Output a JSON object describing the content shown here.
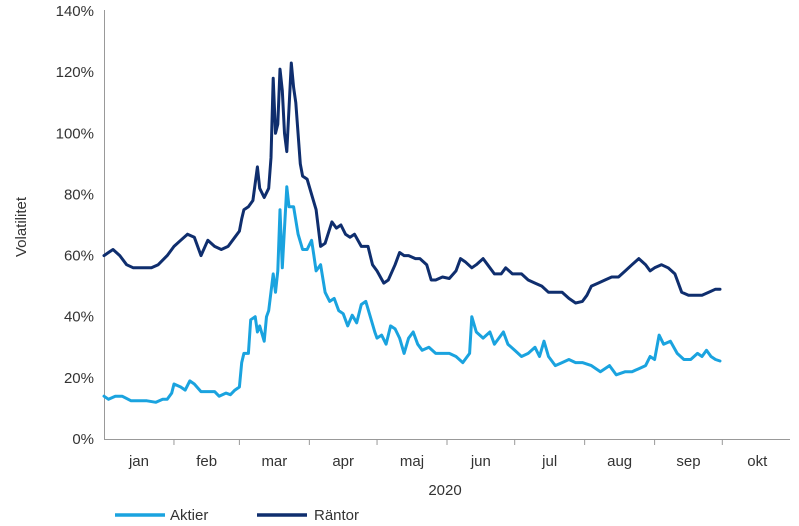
{
  "chart_data": {
    "type": "line",
    "xlabel": "2020",
    "ylabel": "Volatilitet",
    "ylim": [
      0,
      140
    ],
    "y_ticks": [
      "0%",
      "20%",
      "40%",
      "60%",
      "80%",
      "100%",
      "120%",
      "140%"
    ],
    "y_tick_values": [
      0,
      20,
      40,
      60,
      80,
      100,
      120,
      140
    ],
    "x_range": [
      "2020-01-01",
      "2020-10-31"
    ],
    "x_ticks": [
      "jan",
      "feb",
      "mar",
      "apr",
      "maj",
      "jun",
      "jul",
      "aug",
      "sep",
      "okt"
    ],
    "grid": false,
    "legend": "bottom-left",
    "series": [
      {
        "name": "Aktier",
        "color": "#1aa3df",
        "points": [
          [
            "2020-01-01",
            14
          ],
          [
            "2020-01-03",
            13
          ],
          [
            "2020-01-06",
            14
          ],
          [
            "2020-01-09",
            14
          ],
          [
            "2020-01-13",
            12.5
          ],
          [
            "2020-01-16",
            12.5
          ],
          [
            "2020-01-20",
            12.5
          ],
          [
            "2020-01-24",
            12
          ],
          [
            "2020-01-27",
            13
          ],
          [
            "2020-01-29",
            13
          ],
          [
            "2020-01-31",
            15
          ],
          [
            "2020-02-01",
            18
          ],
          [
            "2020-02-04",
            17
          ],
          [
            "2020-02-06",
            16
          ],
          [
            "2020-02-08",
            19
          ],
          [
            "2020-02-10",
            18
          ],
          [
            "2020-02-13",
            15.5
          ],
          [
            "2020-02-16",
            15.5
          ],
          [
            "2020-02-19",
            15.5
          ],
          [
            "2020-02-21",
            14
          ],
          [
            "2020-02-24",
            15
          ],
          [
            "2020-02-26",
            14.5
          ],
          [
            "2020-02-28",
            16
          ],
          [
            "2020-03-01",
            17
          ],
          [
            "2020-03-02",
            25
          ],
          [
            "2020-03-03",
            28
          ],
          [
            "2020-03-05",
            28
          ],
          [
            "2020-03-06",
            39
          ],
          [
            "2020-03-08",
            40
          ],
          [
            "2020-03-09",
            35
          ],
          [
            "2020-03-10",
            37
          ],
          [
            "2020-03-12",
            32
          ],
          [
            "2020-03-13",
            40
          ],
          [
            "2020-03-14",
            42
          ],
          [
            "2020-03-16",
            54
          ],
          [
            "2020-03-17",
            48
          ],
          [
            "2020-03-18",
            55
          ],
          [
            "2020-03-19",
            75
          ],
          [
            "2020-03-20",
            56
          ],
          [
            "2020-03-22",
            82.5
          ],
          [
            "2020-03-23",
            76
          ],
          [
            "2020-03-25",
            76
          ],
          [
            "2020-03-27",
            67
          ],
          [
            "2020-03-29",
            62
          ],
          [
            "2020-03-31",
            62
          ],
          [
            "2020-04-02",
            65
          ],
          [
            "2020-04-03",
            60
          ],
          [
            "2020-04-04",
            55
          ],
          [
            "2020-04-06",
            57
          ],
          [
            "2020-04-08",
            48
          ],
          [
            "2020-04-10",
            45
          ],
          [
            "2020-04-12",
            46
          ],
          [
            "2020-04-14",
            42
          ],
          [
            "2020-04-16",
            41
          ],
          [
            "2020-04-18",
            37
          ],
          [
            "2020-04-20",
            40.5
          ],
          [
            "2020-04-22",
            38
          ],
          [
            "2020-04-24",
            44
          ],
          [
            "2020-04-26",
            45
          ],
          [
            "2020-04-28",
            40
          ],
          [
            "2020-04-30",
            35
          ],
          [
            "2020-05-01",
            33
          ],
          [
            "2020-05-03",
            34
          ],
          [
            "2020-05-05",
            31
          ],
          [
            "2020-05-07",
            37
          ],
          [
            "2020-05-09",
            36
          ],
          [
            "2020-05-11",
            33
          ],
          [
            "2020-05-13",
            28
          ],
          [
            "2020-05-15",
            33
          ],
          [
            "2020-05-17",
            35
          ],
          [
            "2020-05-19",
            31
          ],
          [
            "2020-05-21",
            29
          ],
          [
            "2020-05-24",
            30
          ],
          [
            "2020-05-27",
            28
          ],
          [
            "2020-05-30",
            28
          ],
          [
            "2020-06-02",
            28
          ],
          [
            "2020-06-05",
            27
          ],
          [
            "2020-06-08",
            25
          ],
          [
            "2020-06-11",
            28
          ],
          [
            "2020-06-12",
            40
          ],
          [
            "2020-06-14",
            35
          ],
          [
            "2020-06-17",
            33
          ],
          [
            "2020-06-20",
            35
          ],
          [
            "2020-06-22",
            31
          ],
          [
            "2020-06-24",
            33
          ],
          [
            "2020-06-26",
            35
          ],
          [
            "2020-06-28",
            31
          ],
          [
            "2020-07-01",
            29
          ],
          [
            "2020-07-04",
            27
          ],
          [
            "2020-07-07",
            28
          ],
          [
            "2020-07-10",
            30
          ],
          [
            "2020-07-12",
            27
          ],
          [
            "2020-07-14",
            32
          ],
          [
            "2020-07-16",
            27
          ],
          [
            "2020-07-19",
            24
          ],
          [
            "2020-07-22",
            25
          ],
          [
            "2020-07-25",
            26
          ],
          [
            "2020-07-28",
            25
          ],
          [
            "2020-07-31",
            25
          ],
          [
            "2020-08-04",
            24
          ],
          [
            "2020-08-08",
            22
          ],
          [
            "2020-08-12",
            24
          ],
          [
            "2020-08-15",
            21
          ],
          [
            "2020-08-19",
            22
          ],
          [
            "2020-08-22",
            22
          ],
          [
            "2020-08-25",
            23
          ],
          [
            "2020-08-28",
            24
          ],
          [
            "2020-08-30",
            27
          ],
          [
            "2020-09-01",
            26
          ],
          [
            "2020-09-03",
            34
          ],
          [
            "2020-09-05",
            31
          ],
          [
            "2020-09-08",
            32
          ],
          [
            "2020-09-11",
            28
          ],
          [
            "2020-09-14",
            26
          ],
          [
            "2020-09-17",
            26
          ],
          [
            "2020-09-20",
            28
          ],
          [
            "2020-09-22",
            27
          ],
          [
            "2020-09-24",
            29
          ],
          [
            "2020-09-26",
            27
          ],
          [
            "2020-09-28",
            26
          ],
          [
            "2020-09-30",
            25.5
          ]
        ]
      },
      {
        "name": "Räntor",
        "color": "#0f2e6e",
        "points": [
          [
            "2020-01-01",
            60
          ],
          [
            "2020-01-03",
            61
          ],
          [
            "2020-01-05",
            62
          ],
          [
            "2020-01-08",
            60
          ],
          [
            "2020-01-11",
            57
          ],
          [
            "2020-01-14",
            56
          ],
          [
            "2020-01-18",
            56
          ],
          [
            "2020-01-22",
            56
          ],
          [
            "2020-01-25",
            57
          ],
          [
            "2020-01-29",
            60
          ],
          [
            "2020-02-01",
            63
          ],
          [
            "2020-02-04",
            65
          ],
          [
            "2020-02-07",
            67
          ],
          [
            "2020-02-10",
            66
          ],
          [
            "2020-02-13",
            60
          ],
          [
            "2020-02-16",
            65
          ],
          [
            "2020-02-19",
            63
          ],
          [
            "2020-02-22",
            62
          ],
          [
            "2020-02-25",
            63
          ],
          [
            "2020-02-28",
            66
          ],
          [
            "2020-03-01",
            68
          ],
          [
            "2020-03-02",
            72
          ],
          [
            "2020-03-03",
            75
          ],
          [
            "2020-03-05",
            76
          ],
          [
            "2020-03-07",
            78
          ],
          [
            "2020-03-09",
            89
          ],
          [
            "2020-03-10",
            82
          ],
          [
            "2020-03-12",
            79
          ],
          [
            "2020-03-14",
            82
          ],
          [
            "2020-03-15",
            92
          ],
          [
            "2020-03-16",
            118
          ],
          [
            "2020-03-17",
            100
          ],
          [
            "2020-03-18",
            103
          ],
          [
            "2020-03-19",
            121
          ],
          [
            "2020-03-20",
            114
          ],
          [
            "2020-03-21",
            100
          ],
          [
            "2020-03-22",
            94
          ],
          [
            "2020-03-24",
            123
          ],
          [
            "2020-03-25",
            115
          ],
          [
            "2020-03-26",
            110
          ],
          [
            "2020-03-28",
            90
          ],
          [
            "2020-03-29",
            86
          ],
          [
            "2020-03-31",
            85
          ],
          [
            "2020-04-02",
            80
          ],
          [
            "2020-04-04",
            75
          ],
          [
            "2020-04-06",
            63
          ],
          [
            "2020-04-08",
            64
          ],
          [
            "2020-04-11",
            71
          ],
          [
            "2020-04-13",
            69
          ],
          [
            "2020-04-15",
            70
          ],
          [
            "2020-04-17",
            67
          ],
          [
            "2020-04-19",
            66
          ],
          [
            "2020-04-21",
            67
          ],
          [
            "2020-04-24",
            63
          ],
          [
            "2020-04-27",
            63
          ],
          [
            "2020-04-29",
            57
          ],
          [
            "2020-05-01",
            55
          ],
          [
            "2020-05-04",
            51
          ],
          [
            "2020-05-06",
            52
          ],
          [
            "2020-05-09",
            57
          ],
          [
            "2020-05-11",
            61
          ],
          [
            "2020-05-13",
            60
          ],
          [
            "2020-05-15",
            60
          ],
          [
            "2020-05-18",
            59
          ],
          [
            "2020-05-20",
            59
          ],
          [
            "2020-05-23",
            57
          ],
          [
            "2020-05-25",
            52
          ],
          [
            "2020-05-27",
            52
          ],
          [
            "2020-05-30",
            53
          ],
          [
            "2020-06-02",
            52.5
          ],
          [
            "2020-06-05",
            55
          ],
          [
            "2020-06-07",
            59
          ],
          [
            "2020-06-09",
            58
          ],
          [
            "2020-06-12",
            56
          ],
          [
            "2020-06-14",
            57
          ],
          [
            "2020-06-17",
            59
          ],
          [
            "2020-06-19",
            57
          ],
          [
            "2020-06-22",
            54
          ],
          [
            "2020-06-25",
            54
          ],
          [
            "2020-06-27",
            56
          ],
          [
            "2020-06-30",
            54
          ],
          [
            "2020-07-04",
            54
          ],
          [
            "2020-07-07",
            52
          ],
          [
            "2020-07-10",
            51
          ],
          [
            "2020-07-13",
            50
          ],
          [
            "2020-07-16",
            48
          ],
          [
            "2020-07-19",
            48
          ],
          [
            "2020-07-22",
            48
          ],
          [
            "2020-07-25",
            46
          ],
          [
            "2020-07-28",
            44.5
          ],
          [
            "2020-07-31",
            45
          ],
          [
            "2020-08-02",
            47
          ],
          [
            "2020-08-04",
            50
          ],
          [
            "2020-08-07",
            51
          ],
          [
            "2020-08-10",
            52
          ],
          [
            "2020-08-13",
            53
          ],
          [
            "2020-08-16",
            53
          ],
          [
            "2020-08-19",
            55
          ],
          [
            "2020-08-22",
            57
          ],
          [
            "2020-08-25",
            59
          ],
          [
            "2020-08-28",
            57
          ],
          [
            "2020-08-30",
            55
          ],
          [
            "2020-09-01",
            56
          ],
          [
            "2020-09-04",
            57
          ],
          [
            "2020-09-07",
            56
          ],
          [
            "2020-09-10",
            54
          ],
          [
            "2020-09-13",
            48
          ],
          [
            "2020-09-16",
            47
          ],
          [
            "2020-09-19",
            47
          ],
          [
            "2020-09-22",
            47
          ],
          [
            "2020-09-25",
            48
          ],
          [
            "2020-09-28",
            49
          ],
          [
            "2020-09-30",
            49
          ]
        ]
      }
    ]
  }
}
